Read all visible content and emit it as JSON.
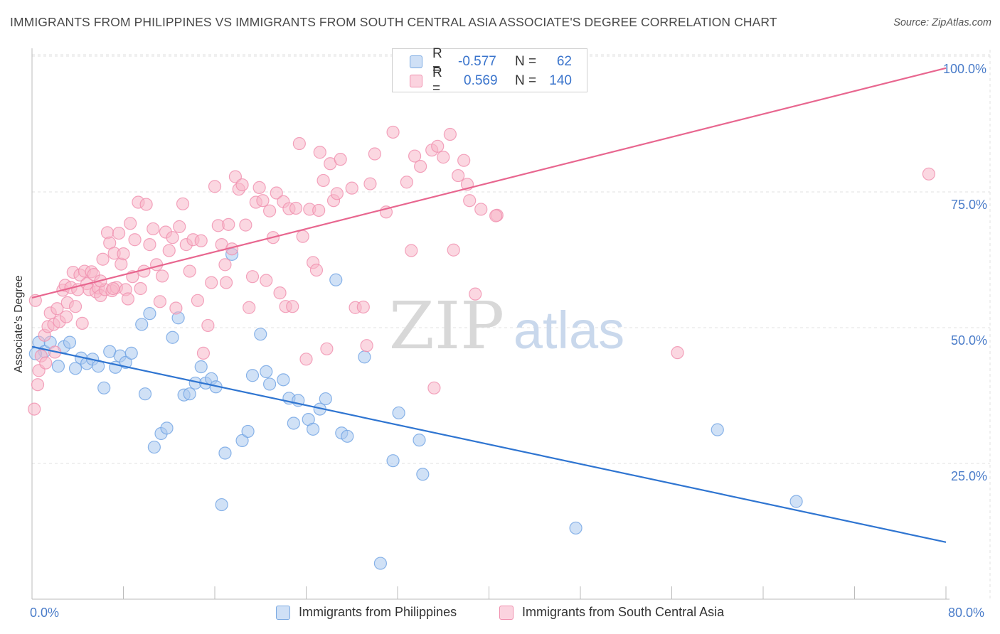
{
  "title": "IMMIGRANTS FROM PHILIPPINES VS IMMIGRANTS FROM SOUTH CENTRAL ASIA ASSOCIATE'S DEGREE CORRELATION CHART",
  "source": "Source: ZipAtlas.com",
  "watermark": {
    "zip": "ZIP",
    "atlas": "atlas"
  },
  "legend": {
    "rows": [
      {
        "r_label": "R =",
        "r_value": "-0.577",
        "n_label": "N =",
        "n_value": "62",
        "color": "#a9c8ef"
      },
      {
        "r_label": "R =",
        "r_value": "0.569",
        "n_label": "N =",
        "n_value": "140",
        "color": "#f7b6c8"
      }
    ]
  },
  "bottom_legend": {
    "items": [
      {
        "label": "Immigrants from Philippines",
        "color": "#a9c8ef"
      },
      {
        "label": "Immigrants from South Central Asia",
        "color": "#f7b6c8"
      }
    ]
  },
  "chart_data": {
    "type": "scatter",
    "title": "IMMIGRANTS FROM PHILIPPINES VS IMMIGRANTS FROM SOUTH CENTRAL ASIA ASSOCIATE'S DEGREE CORRELATION CHART",
    "xlabel": "",
    "ylabel": "Associate's Degree",
    "xlim": [
      0,
      80
    ],
    "ylim": [
      0,
      103
    ],
    "x_tick_labels": [
      "0.0%",
      "80.0%"
    ],
    "y_tick_labels": [
      "25.0%",
      "50.0%",
      "75.0%",
      "100.0%"
    ],
    "y_tick_values": [
      25,
      50,
      75,
      100
    ],
    "grid": true,
    "legend_position": "top-center",
    "series": [
      {
        "name": "Immigrants from Philippines",
        "color": "#6fa3e3",
        "fill": "#a9c8ef",
        "line_color": "#2f75d1",
        "trend": [
          [
            0,
            46.5
          ],
          [
            80,
            10.5
          ]
        ],
        "points": [
          [
            0.6,
            47.3
          ],
          [
            1.1,
            45.6
          ],
          [
            1.6,
            47.3
          ],
          [
            2.3,
            42.9
          ],
          [
            2.8,
            46.5
          ],
          [
            3.3,
            47.3
          ],
          [
            3.8,
            42.5
          ],
          [
            4.3,
            44.4
          ],
          [
            4.8,
            43.4
          ],
          [
            5.3,
            44.2
          ],
          [
            5.8,
            42.9
          ],
          [
            6.3,
            38.9
          ],
          [
            6.8,
            45.6
          ],
          [
            7.3,
            42.7
          ],
          [
            7.7,
            44.8
          ],
          [
            8.2,
            43.6
          ],
          [
            8.7,
            45.3
          ],
          [
            9.6,
            50.6
          ],
          [
            9.9,
            37.8
          ],
          [
            10.3,
            52.6
          ],
          [
            10.7,
            28.0
          ],
          [
            11.3,
            30.5
          ],
          [
            11.8,
            31.5
          ],
          [
            12.3,
            48.2
          ],
          [
            12.8,
            51.8
          ],
          [
            13.3,
            37.6
          ],
          [
            13.8,
            37.8
          ],
          [
            14.3,
            39.8
          ],
          [
            14.8,
            42.8
          ],
          [
            15.2,
            39.8
          ],
          [
            15.7,
            40.6
          ],
          [
            16.1,
            39.1
          ],
          [
            16.6,
            17.4
          ],
          [
            16.9,
            26.9
          ],
          [
            17.5,
            63.5
          ],
          [
            18.4,
            29.2
          ],
          [
            18.9,
            30.9
          ],
          [
            19.3,
            41.2
          ],
          [
            20.0,
            48.8
          ],
          [
            20.5,
            41.9
          ],
          [
            20.8,
            39.6
          ],
          [
            22.0,
            40.4
          ],
          [
            22.5,
            37.0
          ],
          [
            22.9,
            32.4
          ],
          [
            23.3,
            36.6
          ],
          [
            24.2,
            33.1
          ],
          [
            24.6,
            31.3
          ],
          [
            25.2,
            35.0
          ],
          [
            25.7,
            36.9
          ],
          [
            26.6,
            58.8
          ],
          [
            27.1,
            30.6
          ],
          [
            27.6,
            30.0
          ],
          [
            29.1,
            44.6
          ],
          [
            30.5,
            6.6
          ],
          [
            31.6,
            25.5
          ],
          [
            32.1,
            34.3
          ],
          [
            33.9,
            29.3
          ],
          [
            34.2,
            23.0
          ],
          [
            47.6,
            13.1
          ],
          [
            60.0,
            31.2
          ],
          [
            66.9,
            18.0
          ],
          [
            0.3,
            45.2
          ]
        ]
      },
      {
        "name": "Immigrants from South Central Asia",
        "color": "#f08fae",
        "fill": "#f7b6c8",
        "line_color": "#e8668f",
        "trend": [
          [
            0,
            55.5
          ],
          [
            80,
            97.8
          ]
        ],
        "points": [
          [
            0.2,
            35.0
          ],
          [
            0.5,
            39.5
          ],
          [
            0.6,
            42.1
          ],
          [
            0.8,
            44.8
          ],
          [
            1.1,
            48.6
          ],
          [
            1.4,
            50.2
          ],
          [
            1.6,
            52.7
          ],
          [
            1.9,
            50.6
          ],
          [
            2.2,
            53.5
          ],
          [
            2.4,
            51.1
          ],
          [
            2.7,
            56.9
          ],
          [
            2.9,
            57.8
          ],
          [
            3.1,
            54.6
          ],
          [
            3.4,
            57.4
          ],
          [
            3.6,
            60.2
          ],
          [
            3.8,
            53.9
          ],
          [
            4.0,
            57.0
          ],
          [
            4.2,
            59.7
          ],
          [
            4.4,
            50.8
          ],
          [
            4.6,
            60.4
          ],
          [
            4.8,
            58.1
          ],
          [
            5.0,
            57.0
          ],
          [
            5.2,
            60.3
          ],
          [
            5.4,
            59.8
          ],
          [
            5.6,
            56.6
          ],
          [
            5.8,
            57.3
          ],
          [
            6.0,
            55.9
          ],
          [
            6.2,
            62.6
          ],
          [
            6.4,
            57.0
          ],
          [
            6.6,
            67.5
          ],
          [
            6.8,
            65.6
          ],
          [
            7.0,
            56.8
          ],
          [
            7.2,
            63.7
          ],
          [
            7.4,
            57.4
          ],
          [
            7.6,
            67.4
          ],
          [
            7.8,
            61.7
          ],
          [
            8.0,
            63.6
          ],
          [
            8.2,
            57.0
          ],
          [
            8.4,
            55.3
          ],
          [
            8.6,
            69.2
          ],
          [
            8.8,
            59.4
          ],
          [
            9.0,
            66.2
          ],
          [
            9.3,
            73.1
          ],
          [
            9.5,
            57.2
          ],
          [
            9.8,
            60.4
          ],
          [
            10.0,
            72.7
          ],
          [
            10.3,
            65.3
          ],
          [
            10.6,
            68.2
          ],
          [
            10.9,
            61.6
          ],
          [
            11.2,
            54.8
          ],
          [
            11.4,
            59.5
          ],
          [
            11.7,
            67.6
          ],
          [
            12.0,
            64.2
          ],
          [
            12.3,
            66.6
          ],
          [
            12.6,
            53.6
          ],
          [
            12.9,
            68.6
          ],
          [
            13.2,
            72.8
          ],
          [
            13.5,
            65.3
          ],
          [
            13.8,
            60.4
          ],
          [
            14.1,
            66.2
          ],
          [
            14.5,
            55.0
          ],
          [
            14.8,
            66.0
          ],
          [
            15.0,
            45.3
          ],
          [
            15.4,
            50.4
          ],
          [
            15.7,
            58.3
          ],
          [
            16.0,
            76.0
          ],
          [
            16.3,
            68.8
          ],
          [
            16.6,
            65.3
          ],
          [
            16.9,
            61.6
          ],
          [
            17.2,
            69.0
          ],
          [
            17.5,
            64.5
          ],
          [
            17.8,
            77.8
          ],
          [
            18.1,
            75.5
          ],
          [
            18.4,
            76.3
          ],
          [
            18.7,
            68.9
          ],
          [
            19.0,
            53.7
          ],
          [
            19.3,
            59.4
          ],
          [
            19.6,
            73.1
          ],
          [
            19.9,
            75.8
          ],
          [
            20.2,
            73.4
          ],
          [
            20.5,
            58.7
          ],
          [
            20.8,
            71.5
          ],
          [
            21.1,
            66.6
          ],
          [
            21.4,
            74.8
          ],
          [
            21.7,
            56.4
          ],
          [
            22.0,
            73.2
          ],
          [
            22.2,
            53.9
          ],
          [
            22.5,
            71.9
          ],
          [
            22.8,
            53.9
          ],
          [
            23.1,
            72.0
          ],
          [
            23.4,
            83.9
          ],
          [
            23.7,
            66.8
          ],
          [
            24.0,
            44.2
          ],
          [
            24.3,
            71.8
          ],
          [
            24.6,
            62.0
          ],
          [
            24.9,
            60.6
          ],
          [
            25.2,
            82.3
          ],
          [
            25.5,
            77.1
          ],
          [
            25.8,
            46.1
          ],
          [
            26.1,
            80.2
          ],
          [
            26.4,
            73.4
          ],
          [
            26.7,
            74.7
          ],
          [
            27.0,
            81.0
          ],
          [
            28.0,
            75.7
          ],
          [
            28.3,
            53.7
          ],
          [
            29.0,
            53.8
          ],
          [
            29.3,
            46.7
          ],
          [
            29.6,
            76.5
          ],
          [
            30.0,
            82.0
          ],
          [
            31.0,
            71.3
          ],
          [
            31.6,
            86.0
          ],
          [
            32.8,
            76.8
          ],
          [
            33.2,
            64.2
          ],
          [
            33.5,
            81.6
          ],
          [
            34.0,
            79.7
          ],
          [
            35.0,
            82.7
          ],
          [
            35.5,
            83.4
          ],
          [
            36.0,
            81.4
          ],
          [
            36.6,
            85.6
          ],
          [
            36.9,
            64.3
          ],
          [
            37.3,
            78.0
          ],
          [
            37.8,
            80.8
          ],
          [
            38.1,
            76.4
          ],
          [
            38.3,
            73.4
          ],
          [
            38.8,
            56.2
          ],
          [
            39.3,
            71.8
          ],
          [
            40.7,
            70.7
          ],
          [
            56.5,
            45.4
          ],
          [
            78.5,
            78.3
          ],
          [
            0.3,
            55.0
          ],
          [
            1.2,
            43.5
          ],
          [
            2.0,
            45.5
          ],
          [
            3.0,
            52.0
          ],
          [
            6.0,
            58.6
          ],
          [
            7.1,
            57.2
          ],
          [
            17.0,
            58.3
          ],
          [
            25.1,
            71.6
          ],
          [
            35.2,
            38.9
          ],
          [
            40.6,
            70.6
          ]
        ]
      }
    ]
  }
}
